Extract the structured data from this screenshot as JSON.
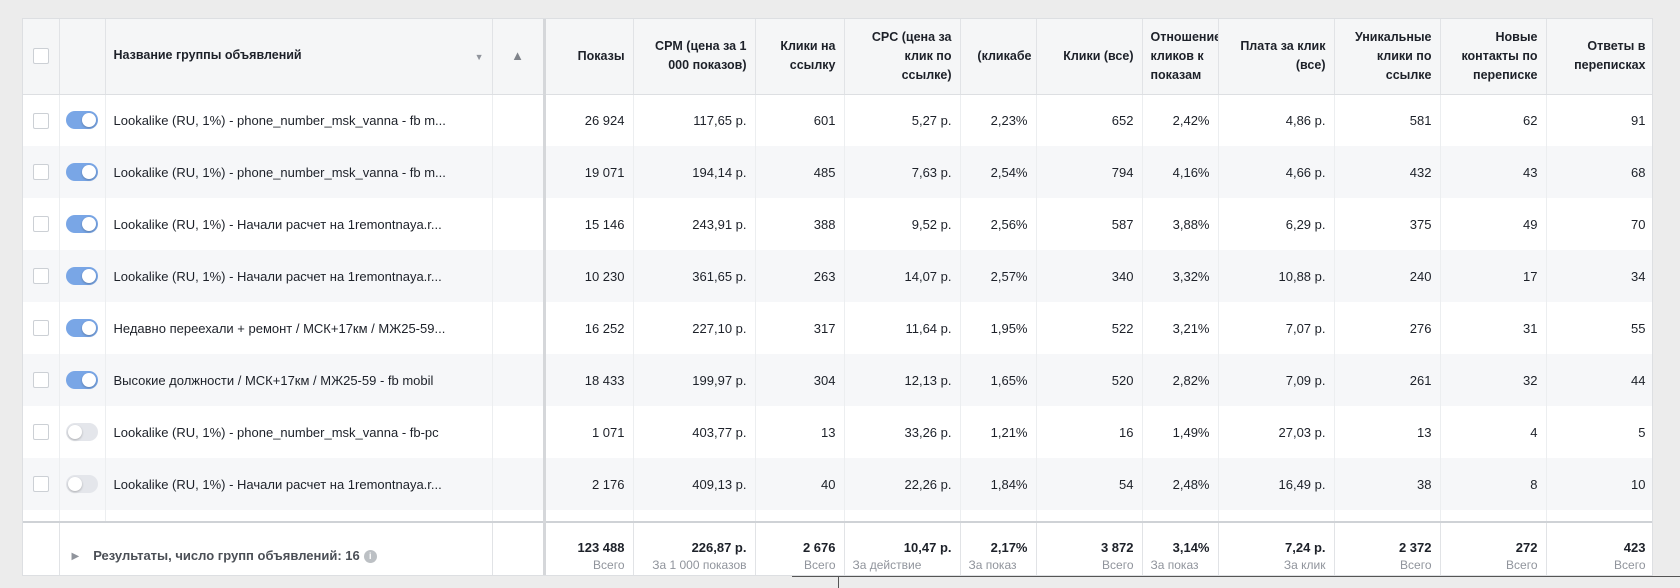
{
  "columns": {
    "name": "Название группы объявлений",
    "impressions": "Показы",
    "cpm": "CPM (цена за 1 000 показов)",
    "link_clicks": "Клики на ссылку",
    "cpc": "CPC (цена за клик по ссылке)",
    "ctr": "(кликабе",
    "clicks_all": "Клики (все)",
    "ctr_all": "Отношение кликов к показам",
    "cost_per_click_all": "Плата за клик (все)",
    "unique_link_clicks": "Уникальные клики по ссылке",
    "new_contacts": "Новые контакты по переписке",
    "replies": "Ответы в переписках"
  },
  "rows": [
    {
      "active": true,
      "name": "Lookalike (RU, 1%) - phone_number_msk_vanna - fb m...",
      "impressions": "26 924",
      "cpm": "117,65 р.",
      "link_clicks": "601",
      "cpc": "5,27 р.",
      "ctr": "2,23%",
      "clicks_all": "652",
      "ctr_all": "2,42%",
      "cost_per_click_all": "4,86 р.",
      "unique_link_clicks": "581",
      "new_contacts": "62",
      "replies": "91"
    },
    {
      "active": true,
      "name": "Lookalike (RU, 1%) - phone_number_msk_vanna - fb m...",
      "impressions": "19 071",
      "cpm": "194,14 р.",
      "link_clicks": "485",
      "cpc": "7,63 р.",
      "ctr": "2,54%",
      "clicks_all": "794",
      "ctr_all": "4,16%",
      "cost_per_click_all": "4,66 р.",
      "unique_link_clicks": "432",
      "new_contacts": "43",
      "replies": "68"
    },
    {
      "active": true,
      "name": "Lookalike (RU, 1%) - Начали расчет на 1remontnaya.r...",
      "impressions": "15 146",
      "cpm": "243,91 р.",
      "link_clicks": "388",
      "cpc": "9,52 р.",
      "ctr": "2,56%",
      "clicks_all": "587",
      "ctr_all": "3,88%",
      "cost_per_click_all": "6,29 р.",
      "unique_link_clicks": "375",
      "new_contacts": "49",
      "replies": "70"
    },
    {
      "active": true,
      "name": "Lookalike (RU, 1%) - Начали расчет на 1remontnaya.r...",
      "impressions": "10 230",
      "cpm": "361,65 р.",
      "link_clicks": "263",
      "cpc": "14,07 р.",
      "ctr": "2,57%",
      "clicks_all": "340",
      "ctr_all": "3,32%",
      "cost_per_click_all": "10,88 р.",
      "unique_link_clicks": "240",
      "new_contacts": "17",
      "replies": "34"
    },
    {
      "active": true,
      "name": "Недавно переехали + ремонт / МСК+17км / МЖ25-59...",
      "impressions": "16 252",
      "cpm": "227,10 р.",
      "link_clicks": "317",
      "cpc": "11,64 р.",
      "ctr": "1,95%",
      "clicks_all": "522",
      "ctr_all": "3,21%",
      "cost_per_click_all": "7,07 р.",
      "unique_link_clicks": "276",
      "new_contacts": "31",
      "replies": "55"
    },
    {
      "active": true,
      "name": "Высокие должности / МСК+17км / МЖ25-59 - fb mobil",
      "impressions": "18 433",
      "cpm": "199,97 р.",
      "link_clicks": "304",
      "cpc": "12,13 р.",
      "ctr": "1,65%",
      "clicks_all": "520",
      "ctr_all": "2,82%",
      "cost_per_click_all": "7,09 р.",
      "unique_link_clicks": "261",
      "new_contacts": "32",
      "replies": "44"
    },
    {
      "active": false,
      "name": "Lookalike (RU, 1%) - phone_number_msk_vanna - fb-pc",
      "impressions": "1 071",
      "cpm": "403,77 р.",
      "link_clicks": "13",
      "cpc": "33,26 р.",
      "ctr": "1,21%",
      "clicks_all": "16",
      "ctr_all": "1,49%",
      "cost_per_click_all": "27,03 р.",
      "unique_link_clicks": "13",
      "new_contacts": "4",
      "replies": "5"
    },
    {
      "active": false,
      "name": "Lookalike (RU, 1%) - Начали расчет на 1remontnaya.r...",
      "impressions": "2 176",
      "cpm": "409,13 р.",
      "link_clicks": "40",
      "cpc": "22,26 р.",
      "ctr": "1,84%",
      "clicks_all": "54",
      "ctr_all": "2,48%",
      "cost_per_click_all": "16,49 р.",
      "unique_link_clicks": "38",
      "new_contacts": "8",
      "replies": "10"
    }
  ],
  "totals": {
    "label": "Результаты, число групп объявлений: 16",
    "impressions": {
      "value": "123 488",
      "sub": "Всего"
    },
    "cpm": {
      "value": "226,87 р.",
      "sub": "За 1 000 показов"
    },
    "link_clicks": {
      "value": "2 676",
      "sub": "Всего"
    },
    "cpc": {
      "value": "10,47 р.",
      "sub": "За действие"
    },
    "ctr": {
      "value": "2,17%",
      "sub": "За показ"
    },
    "clicks_all": {
      "value": "3 872",
      "sub": "Всего"
    },
    "ctr_all": {
      "value": "3,14%",
      "sub": "За показ"
    },
    "cost_per_click_all": {
      "value": "7,24 р.",
      "sub": "За клик"
    },
    "unique_link_clicks": {
      "value": "2 372",
      "sub": "Всего"
    },
    "new_contacts": {
      "value": "272",
      "sub": "Всего"
    },
    "replies": {
      "value": "423",
      "sub": "Всего"
    }
  },
  "icons": {
    "sort": "chevron-down-icon",
    "warning": "warning-triangle-icon",
    "expand": "chevron-right-icon",
    "info": "info-icon"
  },
  "colors": {
    "toggle_on": "#79a6e6",
    "toggle_off": "#e4e6eb",
    "name_link": "#4b5c82"
  }
}
